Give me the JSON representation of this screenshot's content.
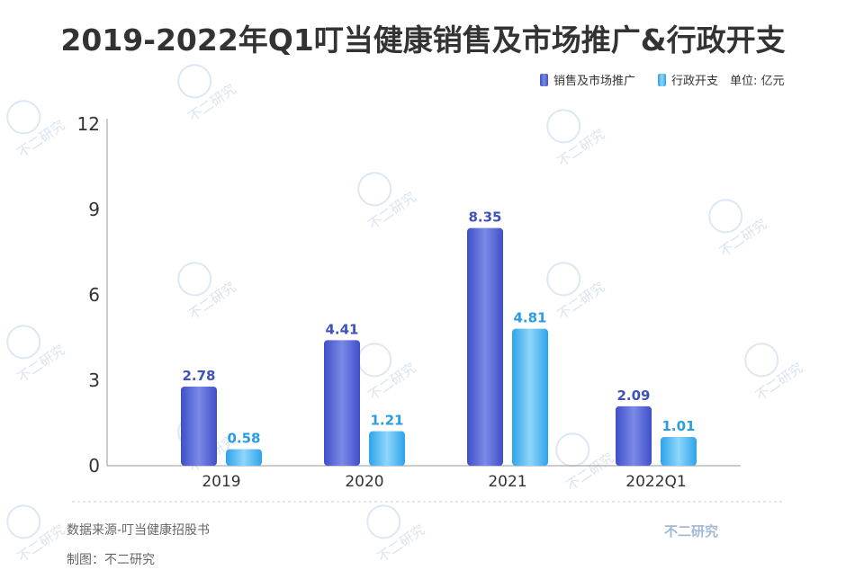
{
  "chart_data": {
    "type": "bar",
    "title": "2019-2022年Q1叮当健康销售及市场推广&行政开支",
    "unit": "单位: 亿元",
    "categories": [
      "2019",
      "2020",
      "2021",
      "2022Q1"
    ],
    "series": [
      {
        "name": "销售及市场推广",
        "values": [
          2.78,
          4.41,
          8.35,
          2.09
        ],
        "color": "#5b6ad6",
        "label_color": "#3f52b8"
      },
      {
        "name": "行政开支",
        "values": [
          0.58,
          1.21,
          4.81,
          1.01
        ],
        "color": "#4fb4ee",
        "label_color": "#2a9ce0"
      }
    ],
    "yticks": [
      "0",
      "3",
      "6",
      "9",
      "12"
    ],
    "ylim": [
      0,
      12
    ],
    "legend_position": "top-right",
    "grid": false
  },
  "footer": {
    "source": "数据来源-叮当健康招股书",
    "maker": "制图：不二研究",
    "brand": "不二研究"
  },
  "watermark": {
    "text": "不二研究"
  }
}
